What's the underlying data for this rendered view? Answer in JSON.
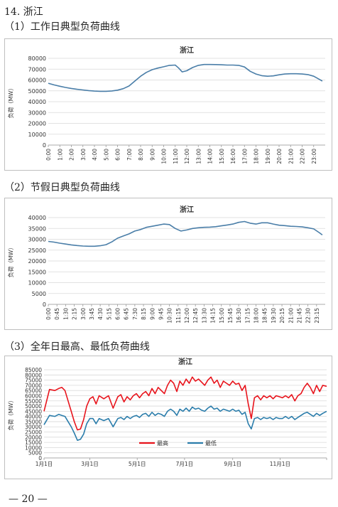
{
  "section_title": "14.  浙江",
  "subtitles": [
    "（1）工作日典型负荷曲线",
    "（2）节假日典型负荷曲线",
    "（3）全年日最高、最低负荷曲线"
  ],
  "page_number": "— 20 —",
  "chart_data": [
    {
      "type": "line",
      "title": "浙江",
      "ylabel": "负荷（MW）",
      "ylim": [
        0,
        80000
      ],
      "yticks": [
        "0",
        "10000",
        "20000",
        "30000",
        "40000",
        "50000",
        "60000",
        "70000",
        "80000"
      ],
      "xticks": [
        "0:00",
        "1:00",
        "2:00",
        "3:00",
        "4:00",
        "5:00",
        "6:00",
        "7:00",
        "8:00",
        "9:00",
        "10:00",
        "11:00",
        "12:00",
        "13:00",
        "14:00",
        "15:00",
        "16:00",
        "17:00",
        "18:00",
        "19:00",
        "20:00",
        "21:00",
        "22:00",
        "23:00"
      ],
      "grid": true,
      "color": "#4a7ea8",
      "x_hours": [
        0,
        0.5,
        1,
        1.5,
        2,
        2.5,
        3,
        3.5,
        4,
        4.5,
        5,
        5.5,
        6,
        6.5,
        7,
        7.5,
        8,
        8.5,
        9,
        9.5,
        10,
        10.5,
        11,
        11.3,
        11.6,
        12,
        12.5,
        13,
        13.5,
        14,
        14.5,
        15,
        15.5,
        16,
        16.5,
        17,
        17.5,
        18,
        18.5,
        19,
        19.5,
        20,
        20.5,
        21,
        21.5,
        22,
        22.5,
        23,
        23.5,
        23.75
      ],
      "values": [
        57000,
        55500,
        54200,
        53100,
        52200,
        51400,
        50800,
        50200,
        49800,
        49600,
        49600,
        49900,
        50600,
        52000,
        54500,
        59000,
        63500,
        67000,
        69500,
        71000,
        72200,
        73500,
        73800,
        71000,
        67500,
        68500,
        71500,
        73500,
        74300,
        74300,
        74200,
        74000,
        73800,
        73800,
        73500,
        72000,
        68000,
        65500,
        64000,
        63500,
        63800,
        64800,
        65500,
        65800,
        65800,
        65500,
        65000,
        63500,
        60500,
        59000
      ]
    },
    {
      "type": "line",
      "title": "浙江",
      "ylabel": "负荷（MW）",
      "ylim": [
        0,
        40000
      ],
      "yticks": [
        "0",
        "5000",
        "10000",
        "15000",
        "20000",
        "25000",
        "30000",
        "35000",
        "40000"
      ],
      "xticks": [
        "0:00",
        "0:45",
        "1:30",
        "2:15",
        "3:00",
        "3:45",
        "4:30",
        "5:15",
        "6:00",
        "6:45",
        "7:30",
        "8:15",
        "9:00",
        "9:45",
        "10:30",
        "11:15",
        "12:00",
        "12:45",
        "13:30",
        "14:15",
        "15:00",
        "15:45",
        "16:30",
        "17:15",
        "18:00",
        "18:45",
        "19:30",
        "20:15",
        "21:00",
        "21:45",
        "22:30",
        "23:15"
      ],
      "grid": true,
      "color": "#4a7ea8",
      "x_hours": [
        0,
        0.5,
        1,
        1.5,
        2,
        2.5,
        3,
        3.5,
        4,
        4.5,
        5,
        5.5,
        6,
        6.5,
        7,
        7.5,
        8,
        8.5,
        9,
        9.5,
        10,
        10.5,
        11,
        11.5,
        12,
        12.5,
        13,
        13.5,
        14,
        14.5,
        15,
        15.5,
        16,
        16.5,
        17,
        17.5,
        18,
        18.5,
        19,
        19.5,
        20,
        20.5,
        21,
        21.5,
        22,
        22.5,
        23,
        23.5,
        23.75
      ],
      "values": [
        29000,
        28700,
        28200,
        27800,
        27400,
        27100,
        26900,
        26800,
        26800,
        27000,
        27500,
        28800,
        30500,
        31500,
        32500,
        33800,
        34500,
        35500,
        36000,
        36500,
        37000,
        36800,
        35000,
        33800,
        34300,
        35000,
        35300,
        35500,
        35600,
        35800,
        36200,
        36600,
        37000,
        37800,
        38200,
        37400,
        37000,
        37600,
        37600,
        37000,
        36500,
        36300,
        36000,
        35900,
        35700,
        35300,
        34800,
        33000,
        32000
      ]
    },
    {
      "type": "line",
      "title": "浙江",
      "ylabel": "负荷（MW）",
      "ylim": [
        0,
        85000
      ],
      "yticks": [
        "0",
        "5000",
        "10000",
        "15000",
        "20000",
        "25000",
        "30000",
        "35000",
        "40000",
        "45000",
        "50000",
        "55000",
        "60000",
        "65000",
        "70000",
        "75000",
        "80000",
        "85000"
      ],
      "xticks": [
        "1月1日",
        "3月1日",
        "5月1日",
        "7月1日",
        "9月1日",
        "11月1日"
      ],
      "grid": true,
      "legend_position": "bottom",
      "series": [
        {
          "name": "最高",
          "color": "#e8141c",
          "day": [
            1,
            8,
            15,
            20,
            24,
            28,
            32,
            36,
            40,
            44,
            48,
            52,
            56,
            60,
            64,
            68,
            72,
            78,
            84,
            90,
            96,
            100,
            104,
            108,
            112,
            116,
            120,
            124,
            128,
            132,
            136,
            140,
            144,
            148,
            152,
            156,
            160,
            164,
            168,
            172,
            176,
            180,
            184,
            188,
            192,
            196,
            200,
            204,
            208,
            212,
            216,
            220,
            224,
            228,
            232,
            236,
            240,
            244,
            248,
            252,
            256,
            260,
            264,
            268,
            272,
            276,
            280,
            284,
            288,
            292,
            296,
            300,
            304,
            308,
            312,
            316,
            320,
            324,
            328,
            332,
            336,
            340,
            344,
            348,
            352,
            356,
            360,
            365
          ],
          "values": [
            45000,
            66000,
            65000,
            67000,
            68000,
            65000,
            55000,
            45000,
            35000,
            27000,
            28000,
            37000,
            50000,
            57000,
            59000,
            52000,
            60000,
            57000,
            60000,
            48000,
            59000,
            61000,
            54000,
            59000,
            56000,
            60000,
            62000,
            58000,
            62000,
            64000,
            60000,
            67000,
            62000,
            68000,
            65000,
            62000,
            70000,
            75000,
            72000,
            64000,
            74000,
            70000,
            76000,
            72000,
            78000,
            74000,
            76000,
            73000,
            70000,
            75000,
            78000,
            72000,
            75000,
            68000,
            74000,
            72000,
            70000,
            74000,
            71000,
            72000,
            65000,
            70000,
            52000,
            38000,
            58000,
            60000,
            56000,
            60000,
            58000,
            60000,
            57000,
            60000,
            59000,
            58000,
            60000,
            58000,
            61000,
            55000,
            60000,
            62000,
            68000,
            72000,
            68000,
            62000,
            70000,
            64000,
            70000,
            69000
          ]
        },
        {
          "name": "最低",
          "color": "#2b7dab",
          "day": [
            1,
            8,
            15,
            20,
            24,
            28,
            32,
            36,
            40,
            44,
            48,
            52,
            56,
            60,
            64,
            68,
            72,
            78,
            84,
            90,
            96,
            100,
            104,
            108,
            112,
            116,
            120,
            124,
            128,
            132,
            136,
            140,
            144,
            148,
            152,
            156,
            160,
            164,
            168,
            172,
            176,
            180,
            184,
            188,
            192,
            196,
            200,
            204,
            208,
            212,
            216,
            220,
            224,
            228,
            232,
            236,
            240,
            244,
            248,
            252,
            256,
            260,
            264,
            268,
            272,
            276,
            280,
            284,
            288,
            292,
            296,
            300,
            304,
            308,
            312,
            316,
            320,
            324,
            328,
            332,
            336,
            340,
            344,
            348,
            352,
            356,
            360,
            365
          ],
          "values": [
            32000,
            41000,
            40000,
            42000,
            41000,
            40000,
            35000,
            30000,
            24000,
            17000,
            18000,
            23000,
            33000,
            38000,
            38000,
            33000,
            38000,
            36000,
            38000,
            30000,
            38000,
            39000,
            37000,
            40000,
            38000,
            40000,
            41000,
            39000,
            42000,
            43000,
            40000,
            44000,
            41000,
            43000,
            42000,
            40000,
            45000,
            47000,
            45000,
            41000,
            47000,
            45000,
            48000,
            45000,
            49000,
            47000,
            48000,
            46000,
            45000,
            48000,
            50000,
            47000,
            48000,
            45000,
            47000,
            46000,
            45000,
            47000,
            45000,
            46000,
            42000,
            44000,
            33000,
            28000,
            38000,
            39000,
            37000,
            39000,
            38000,
            39000,
            37000,
            39000,
            38000,
            38000,
            40000,
            38000,
            40000,
            37000,
            39000,
            41000,
            43000,
            44000,
            42000,
            40000,
            43000,
            41000,
            43000,
            45000
          ]
        }
      ]
    }
  ]
}
